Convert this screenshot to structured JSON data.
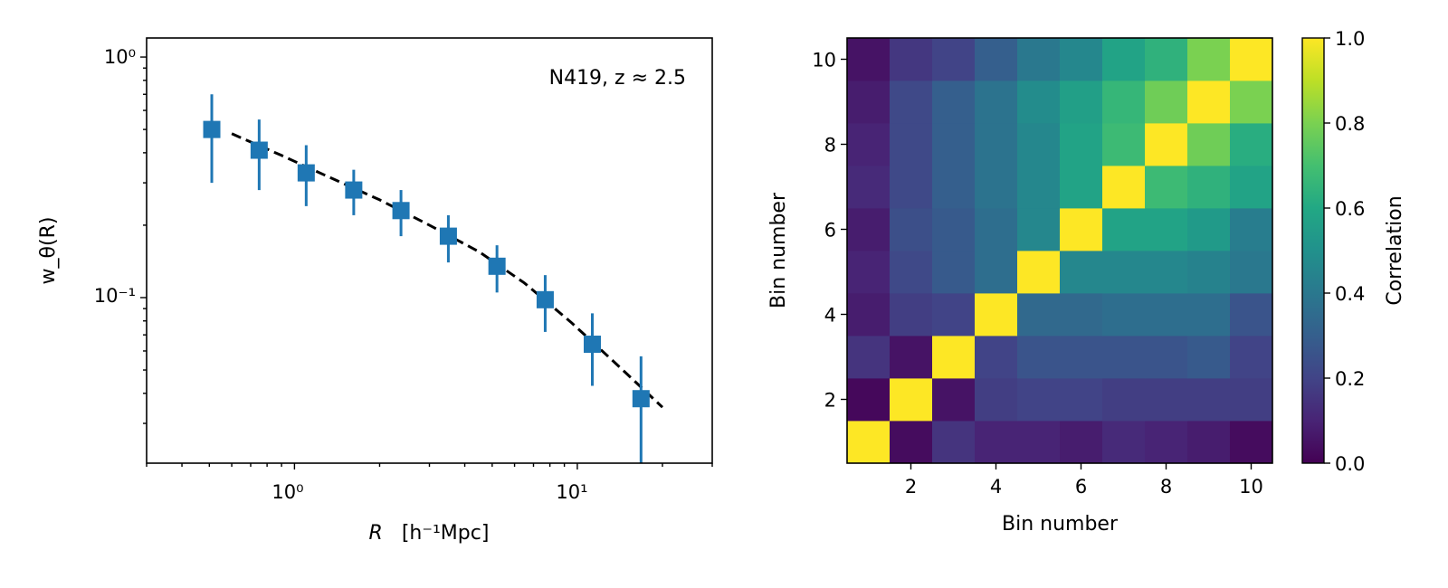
{
  "chart_data": [
    {
      "type": "scatter",
      "xlabel_var": "R",
      "xlabel_unit": "[h⁻¹Mpc]",
      "ylabel": "w_θ(R)",
      "xscale": "log",
      "yscale": "log",
      "xlim": [
        0.3,
        30
      ],
      "ylim": [
        0.0205,
        1.2
      ],
      "x_tick_labels": [
        "10⁰",
        "10¹"
      ],
      "y_tick_labels": [
        "10⁰",
        "10⁻¹"
      ],
      "annotation": "N419, z ≈ 2.5",
      "grid": false,
      "series": [
        {
          "kind": "errorbar",
          "color": "#1f77b4",
          "marker": "square",
          "points": [
            {
              "x": 0.51,
              "y": 0.5,
              "ylo": 0.3,
              "yhi": 0.7
            },
            {
              "x": 0.75,
              "y": 0.41,
              "ylo": 0.28,
              "yhi": 0.55
            },
            {
              "x": 1.1,
              "y": 0.33,
              "ylo": 0.24,
              "yhi": 0.43
            },
            {
              "x": 1.62,
              "y": 0.28,
              "ylo": 0.22,
              "yhi": 0.34
            },
            {
              "x": 2.38,
              "y": 0.23,
              "ylo": 0.18,
              "yhi": 0.28
            },
            {
              "x": 3.5,
              "y": 0.18,
              "ylo": 0.14,
              "yhi": 0.22
            },
            {
              "x": 5.2,
              "y": 0.135,
              "ylo": 0.105,
              "yhi": 0.165
            },
            {
              "x": 7.7,
              "y": 0.098,
              "ylo": 0.072,
              "yhi": 0.124
            },
            {
              "x": 11.3,
              "y": 0.064,
              "ylo": 0.043,
              "yhi": 0.086
            },
            {
              "x": 16.8,
              "y": 0.038,
              "ylo": 0.018,
              "yhi": 0.057
            }
          ]
        },
        {
          "kind": "model",
          "style": "dashed",
          "color": "#000000",
          "x": [
            0.6,
            0.9,
            1.3,
            2.0,
            3.0,
            4.5,
            6.5,
            9.5,
            13.5,
            20.0
          ],
          "y": [
            0.48,
            0.39,
            0.32,
            0.255,
            0.2,
            0.155,
            0.115,
            0.079,
            0.054,
            0.035
          ]
        }
      ]
    },
    {
      "type": "heatmap",
      "xlabel": "Bin number",
      "ylabel": "Bin number",
      "colorbar_label": "Correlation",
      "colormap": "viridis",
      "vmin": 0.0,
      "vmax": 1.0,
      "x_ticks": [
        "2",
        "4",
        "6",
        "8",
        "10"
      ],
      "y_ticks": [
        "2",
        "4",
        "6",
        "8",
        "10"
      ],
      "colorbar_ticks": [
        "0.0",
        "0.2",
        "0.4",
        "0.6",
        "0.8",
        "1.0"
      ],
      "matrix_rows_bin1_to_bin10": [
        [
          1.0,
          0.03,
          0.15,
          0.1,
          0.1,
          0.08,
          0.12,
          0.1,
          0.08,
          0.03
        ],
        [
          0.02,
          1.0,
          0.05,
          0.18,
          0.2,
          0.2,
          0.18,
          0.18,
          0.18,
          0.18
        ],
        [
          0.15,
          0.05,
          1.0,
          0.2,
          0.26,
          0.26,
          0.26,
          0.26,
          0.28,
          0.2
        ],
        [
          0.08,
          0.18,
          0.2,
          1.0,
          0.34,
          0.34,
          0.36,
          0.36,
          0.36,
          0.26
        ],
        [
          0.1,
          0.22,
          0.28,
          0.36,
          1.0,
          0.46,
          0.46,
          0.46,
          0.44,
          0.4
        ],
        [
          0.08,
          0.24,
          0.28,
          0.36,
          0.46,
          1.0,
          0.58,
          0.58,
          0.54,
          0.42
        ],
        [
          0.12,
          0.22,
          0.3,
          0.38,
          0.46,
          0.58,
          1.0,
          0.68,
          0.64,
          0.58
        ],
        [
          0.1,
          0.22,
          0.3,
          0.38,
          0.46,
          0.58,
          0.68,
          1.0,
          0.78,
          0.62
        ],
        [
          0.08,
          0.22,
          0.3,
          0.38,
          0.48,
          0.56,
          0.66,
          0.78,
          1.0,
          0.8
        ],
        [
          0.05,
          0.16,
          0.2,
          0.3,
          0.4,
          0.46,
          0.58,
          0.64,
          0.8,
          1.0
        ]
      ]
    }
  ]
}
